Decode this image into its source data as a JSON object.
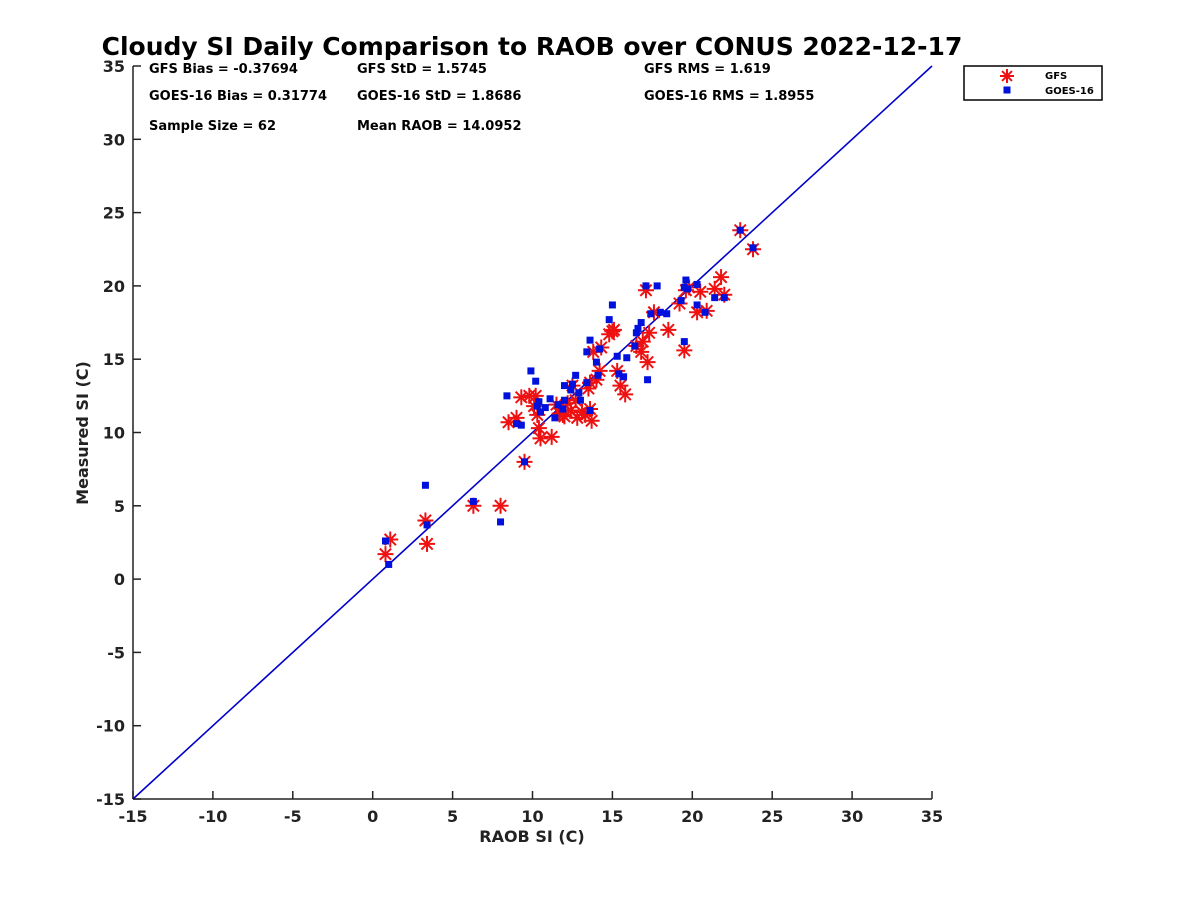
{
  "chart_data": {
    "type": "scatter",
    "title": "Cloudy SI Daily Comparison to RAOB over CONUS 2022-12-17",
    "xlabel": "RAOB SI (C)",
    "ylabel": "Measured SI (C)",
    "xlim": [
      -15,
      35
    ],
    "ylim": [
      -15,
      35
    ],
    "xticks": [
      -15,
      -10,
      -5,
      0,
      5,
      10,
      15,
      20,
      25,
      30,
      35
    ],
    "yticks": [
      -15,
      -10,
      -5,
      0,
      5,
      10,
      15,
      20,
      25,
      30,
      35
    ],
    "grid": false,
    "legend_position": "top-right outside",
    "reference_line": {
      "name": "one-to-one",
      "from": [
        -15,
        -15
      ],
      "to": [
        35,
        35
      ],
      "color": "#0000cc"
    },
    "stats": [
      [
        "GFS Bias = -0.37694",
        "GFS StD = 1.5745",
        "GFS RMS = 1.619"
      ],
      [
        "GOES-16 Bias = 0.31774",
        "GOES-16 StD = 1.8686",
        "GOES-16 RMS = 1.8955"
      ],
      [
        "Sample Size = 62",
        "Mean RAOB = 14.0952",
        ""
      ]
    ],
    "series": [
      {
        "name": "GFS",
        "marker": "asterisk",
        "color": "#ee1111",
        "points": [
          [
            0.8,
            1.7
          ],
          [
            1.1,
            2.7
          ],
          [
            3.3,
            4.0
          ],
          [
            3.4,
            2.4
          ],
          [
            6.3,
            5.0
          ],
          [
            8.0,
            5.0
          ],
          [
            8.5,
            10.7
          ],
          [
            9.0,
            11.0
          ],
          [
            9.3,
            12.4
          ],
          [
            9.5,
            8.0
          ],
          [
            9.8,
            12.5
          ],
          [
            10.2,
            12.5
          ],
          [
            10.3,
            11.2
          ],
          [
            10.4,
            10.3
          ],
          [
            10.5,
            9.6
          ],
          [
            11.2,
            9.7
          ],
          [
            11.5,
            11.9
          ],
          [
            11.7,
            11.3
          ],
          [
            12.0,
            11.1
          ],
          [
            12.4,
            11.5
          ],
          [
            12.7,
            12.2
          ],
          [
            12.8,
            11.0
          ],
          [
            13.1,
            11.4
          ],
          [
            13.3,
            11.2
          ],
          [
            13.5,
            13.0
          ],
          [
            13.6,
            11.6
          ],
          [
            13.7,
            10.8
          ],
          [
            13.6,
            13.4
          ],
          [
            14.0,
            13.6
          ],
          [
            14.2,
            14.2
          ],
          [
            13.8,
            15.5
          ],
          [
            14.8,
            16.7
          ],
          [
            15.1,
            17.0
          ],
          [
            15.3,
            14.2
          ],
          [
            15.5,
            13.2
          ],
          [
            15.8,
            12.6
          ],
          [
            16.5,
            15.9
          ],
          [
            16.8,
            15.5
          ],
          [
            17.2,
            14.8
          ],
          [
            17.1,
            19.7
          ],
          [
            17.3,
            16.8
          ],
          [
            17.6,
            18.2
          ],
          [
            18.5,
            17.0
          ],
          [
            19.2,
            18.8
          ],
          [
            19.5,
            15.6
          ],
          [
            19.6,
            19.7
          ],
          [
            19.8,
            19.9
          ],
          [
            20.3,
            18.2
          ],
          [
            20.5,
            19.6
          ],
          [
            20.9,
            18.3
          ],
          [
            21.4,
            19.8
          ],
          [
            21.8,
            20.6
          ],
          [
            22.0,
            19.4
          ],
          [
            23.0,
            23.8
          ],
          [
            23.8,
            22.5
          ],
          [
            14.3,
            15.8
          ],
          [
            12.2,
            12.0
          ],
          [
            10.1,
            11.8
          ],
          [
            15.0,
            16.9
          ],
          [
            16.9,
            16.2
          ],
          [
            11.9,
            11.2
          ],
          [
            12.5,
            13.2
          ]
        ]
      },
      {
        "name": "GOES-16",
        "marker": "square",
        "color": "#0011dd",
        "points": [
          [
            0.8,
            2.6
          ],
          [
            1.0,
            1.0
          ],
          [
            3.3,
            6.4
          ],
          [
            3.4,
            3.7
          ],
          [
            6.3,
            5.3
          ],
          [
            8.0,
            3.9
          ],
          [
            8.4,
            12.5
          ],
          [
            9.3,
            10.5
          ],
          [
            9.5,
            8.0
          ],
          [
            9.9,
            14.2
          ],
          [
            10.2,
            13.5
          ],
          [
            10.3,
            11.8
          ],
          [
            10.5,
            11.4
          ],
          [
            10.4,
            12.1
          ],
          [
            11.1,
            12.3
          ],
          [
            11.4,
            11.0
          ],
          [
            11.6,
            11.9
          ],
          [
            12.0,
            13.2
          ],
          [
            12.0,
            12.2
          ],
          [
            12.5,
            13.3
          ],
          [
            12.7,
            13.9
          ],
          [
            13.0,
            12.2
          ],
          [
            13.4,
            15.5
          ],
          [
            13.6,
            16.3
          ],
          [
            13.6,
            11.5
          ],
          [
            14.0,
            14.8
          ],
          [
            14.2,
            15.7
          ],
          [
            14.8,
            17.7
          ],
          [
            15.0,
            18.7
          ],
          [
            15.3,
            15.2
          ],
          [
            15.7,
            13.8
          ],
          [
            16.4,
            15.9
          ],
          [
            16.5,
            16.8
          ],
          [
            16.8,
            17.5
          ],
          [
            17.1,
            20.0
          ],
          [
            17.2,
            13.6
          ],
          [
            17.4,
            18.1
          ],
          [
            17.8,
            20.0
          ],
          [
            18.4,
            18.1
          ],
          [
            19.3,
            19.0
          ],
          [
            19.5,
            16.2
          ],
          [
            19.5,
            19.9
          ],
          [
            19.6,
            20.4
          ],
          [
            20.3,
            18.7
          ],
          [
            20.3,
            20.1
          ],
          [
            20.8,
            18.2
          ],
          [
            21.4,
            19.2
          ],
          [
            22.0,
            19.2
          ],
          [
            23.0,
            23.8
          ],
          [
            23.8,
            22.6
          ],
          [
            9.0,
            10.6
          ],
          [
            12.4,
            12.9
          ],
          [
            13.4,
            13.4
          ],
          [
            11.9,
            11.6
          ],
          [
            14.1,
            13.9
          ],
          [
            15.4,
            14.0
          ],
          [
            16.6,
            17.1
          ],
          [
            19.7,
            19.8
          ],
          [
            18.0,
            18.2
          ],
          [
            10.8,
            11.7
          ],
          [
            12.9,
            12.7
          ],
          [
            15.9,
            15.1
          ]
        ]
      }
    ]
  }
}
